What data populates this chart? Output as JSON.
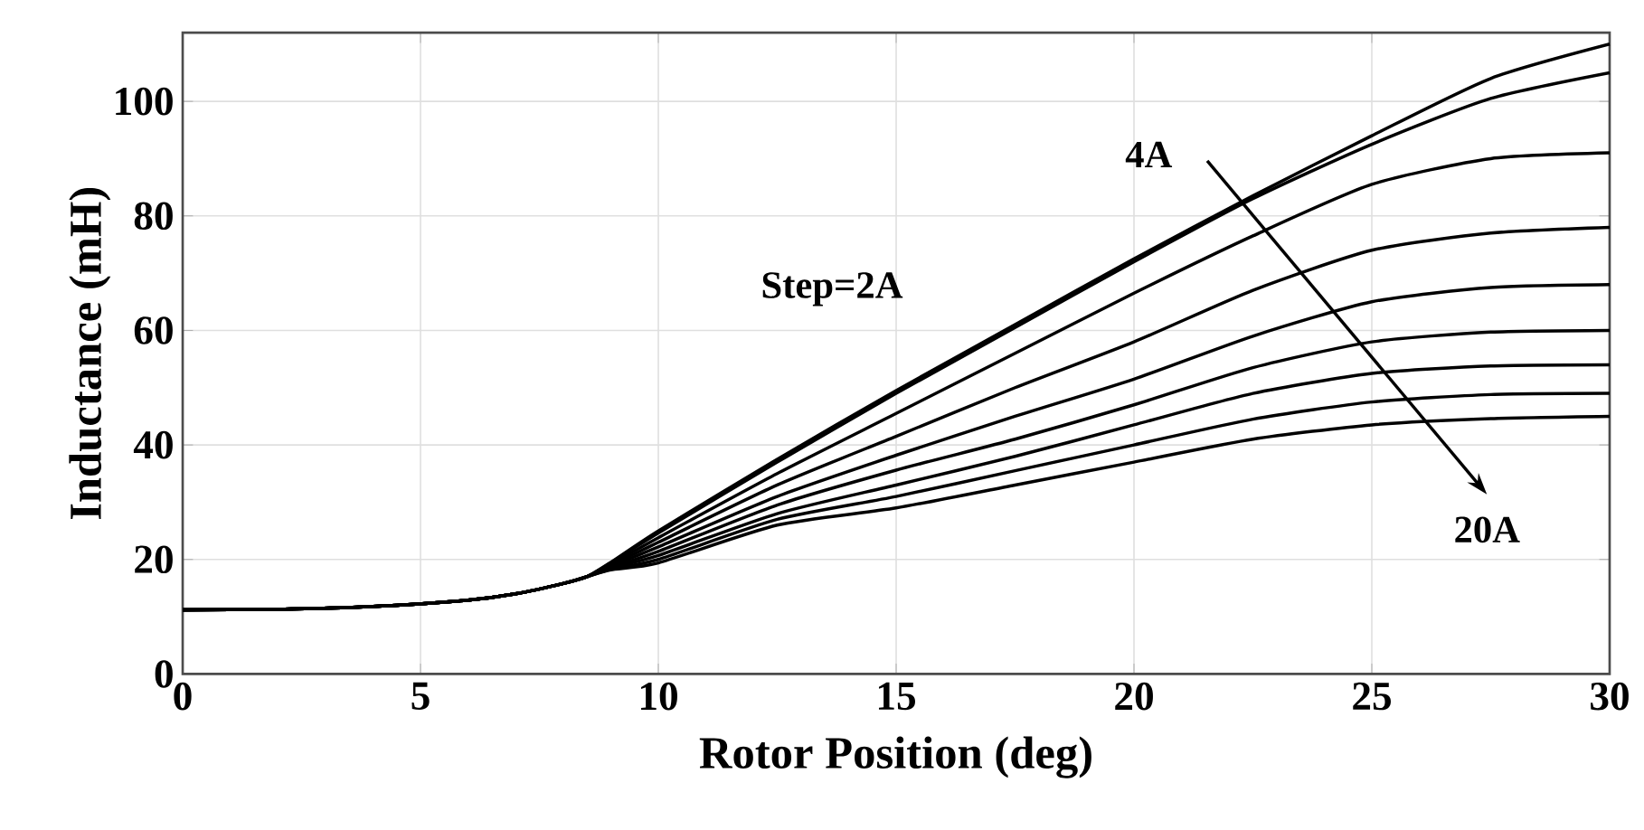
{
  "chart_data": {
    "type": "line",
    "xlabel": "Rotor Position (deg)",
    "ylabel": "Inductance (mH)",
    "x": [
      0,
      2,
      4,
      6,
      7,
      8,
      8.5,
      9,
      10,
      12.5,
      15,
      17.5,
      20,
      22.5,
      25,
      27.5,
      30
    ],
    "series": [
      {
        "color": "#000000",
        "values": [
          11.2,
          11.3,
          11.8,
          12.9,
          14,
          15.8,
          17,
          19.5,
          25,
          37.5,
          49.5,
          61,
          72.5,
          83.5,
          94,
          104,
          110
        ]
      },
      {
        "color": "#000000",
        "values": [
          11.2,
          11.3,
          11.8,
          12.9,
          14,
          15.8,
          17,
          19.4,
          24.6,
          37,
          49,
          60.5,
          72,
          83,
          92.5,
          100.5,
          105
        ]
      },
      {
        "color": "#000000",
        "values": [
          11.2,
          11.3,
          11.8,
          12.9,
          14,
          15.8,
          17,
          19.2,
          23.8,
          35,
          45.5,
          56,
          66.5,
          76.5,
          85.5,
          90,
          91
        ]
      },
      {
        "color": "#000000",
        "values": [
          11.2,
          11.3,
          11.8,
          12.9,
          14,
          15.8,
          17,
          19,
          23,
          33,
          41.5,
          50,
          58,
          67,
          74,
          77,
          78
        ]
      },
      {
        "color": "#000000",
        "values": [
          11.2,
          11.3,
          11.8,
          12.9,
          14,
          15.8,
          17,
          18.8,
          22.2,
          31,
          38.2,
          45,
          51.5,
          59,
          65,
          67.5,
          68
        ]
      },
      {
        "color": "#000000",
        "values": [
          11.2,
          11.3,
          11.8,
          12.9,
          14,
          15.8,
          17,
          18.6,
          21.4,
          29.5,
          35.6,
          41,
          47,
          53.5,
          58,
          59.7,
          60
        ]
      },
      {
        "color": "#000000",
        "values": [
          11.2,
          11.3,
          11.8,
          12.9,
          14,
          15.8,
          17,
          18.5,
          20.7,
          28,
          33,
          38,
          43.5,
          49,
          52.5,
          53.8,
          54
        ]
      },
      {
        "color": "#000000",
        "values": [
          11.2,
          11.3,
          11.8,
          12.9,
          14,
          15.8,
          17,
          18.3,
          20,
          27,
          31,
          35.5,
          40,
          44.5,
          47.5,
          48.8,
          49
        ]
      },
      {
        "color": "#000000",
        "values": [
          11.2,
          11.3,
          11.8,
          12.9,
          14,
          15.8,
          17,
          18.2,
          19.4,
          26,
          29,
          33,
          37,
          41,
          43.5,
          44.6,
          45
        ]
      }
    ],
    "annotations": [
      "Step=2A",
      "4A",
      "20A"
    ],
    "xlim": [
      0,
      30
    ],
    "ylim": [
      0,
      112
    ],
    "xticks": [
      0,
      5,
      10,
      15,
      20,
      25,
      30
    ],
    "yticks": [
      0,
      20,
      40,
      60,
      80,
      100
    ],
    "grid": true,
    "marker": "none",
    "line_style": "solid"
  }
}
